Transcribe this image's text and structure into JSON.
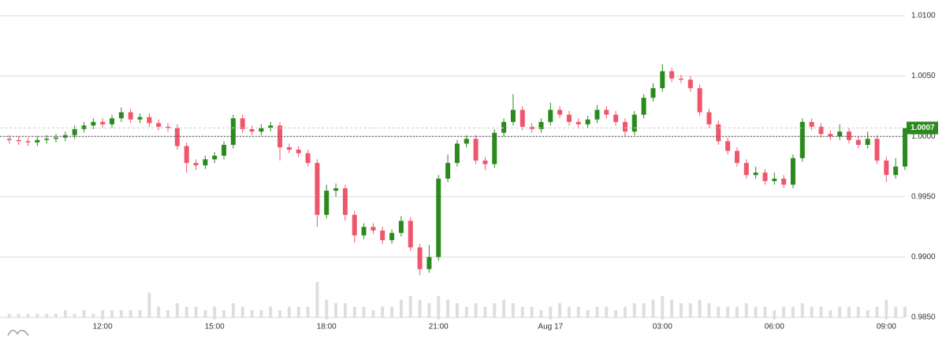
{
  "chart_data": {
    "type": "candlestick",
    "x": [
      9.5,
      9.75,
      10,
      10.25,
      10.5,
      10.75,
      11,
      11.25,
      11.5,
      11.75,
      12,
      12.25,
      12.5,
      12.75,
      13,
      13.25,
      13.5,
      13.75,
      14,
      14.25,
      14.5,
      14.75,
      15,
      15.25,
      15.5,
      15.75,
      16,
      16.25,
      16.5,
      16.75,
      17,
      17.25,
      17.5,
      17.75,
      18,
      18.25,
      18.5,
      18.75,
      19,
      19.25,
      19.5,
      19.75,
      20,
      20.25,
      20.5,
      20.75,
      21,
      21.25,
      21.5,
      21.75,
      22,
      22.25,
      22.5,
      22.75,
      23,
      23.25,
      23.5,
      23.75,
      24,
      24.25,
      24.5,
      24.75,
      25,
      25.25,
      25.5,
      25.75,
      26,
      26.25,
      26.5,
      26.75,
      27,
      27.25,
      27.5,
      27.75,
      28,
      28.25,
      28.5,
      28.75,
      29,
      29.25,
      29.5,
      29.75,
      30,
      30.25,
      30.5,
      30.75,
      31,
      31.25,
      31.5,
      31.75,
      32,
      32.25,
      32.5,
      32.75,
      33,
      33.25,
      33.5
    ],
    "ohlc": [
      [
        0.9998,
        1.0001,
        0.9994,
        0.9997
      ],
      [
        0.9997,
        1.0,
        0.9993,
        0.9996
      ],
      [
        0.9996,
        0.9999,
        0.9992,
        0.9995
      ],
      [
        0.9995,
        1.0,
        0.9992,
        0.9997
      ],
      [
        0.9997,
        1.0001,
        0.9994,
        0.9998
      ],
      [
        0.9998,
        1.0002,
        0.9995,
        0.9999
      ],
      [
        0.9999,
        1.0004,
        0.9996,
        1.0001
      ],
      [
        1.0001,
        1.0009,
        0.9998,
        1.0006
      ],
      [
        1.0006,
        1.0012,
        1.0003,
        1.0009
      ],
      [
        1.0009,
        1.0015,
        1.0006,
        1.0012
      ],
      [
        1.0012,
        1.0015,
        1.0007,
        1.001
      ],
      [
        1.001,
        1.0018,
        1.0007,
        1.0015
      ],
      [
        1.0015,
        1.0024,
        1.0012,
        1.002
      ],
      [
        1.002,
        1.0023,
        1.0011,
        1.0014
      ],
      [
        1.0014,
        1.0019,
        1.0011,
        1.0016
      ],
      [
        1.0016,
        1.0019,
        1.0008,
        1.0011
      ],
      [
        1.0011,
        1.0014,
        1.0005,
        1.0008
      ],
      [
        1.0008,
        1.0011,
        1.0004,
        1.0007
      ],
      [
        1.0007,
        1.001,
        0.9989,
        0.9992
      ],
      [
        0.9992,
        0.9995,
        0.997,
        0.9978
      ],
      [
        0.9978,
        0.9981,
        0.9972,
        0.9976
      ],
      [
        0.9976,
        0.9984,
        0.9973,
        0.9981
      ],
      [
        0.9981,
        0.9987,
        0.9978,
        0.9984
      ],
      [
        0.9984,
        0.9996,
        0.9981,
        0.9993
      ],
      [
        0.9993,
        1.0018,
        0.999,
        1.0015
      ],
      [
        1.0015,
        1.0018,
        1.0003,
        1.0006
      ],
      [
        1.0006,
        1.0009,
        1.0001,
        1.0004
      ],
      [
        1.0004,
        1.001,
        1.0001,
        1.0007
      ],
      [
        1.0007,
        1.0012,
        1.0004,
        1.0009
      ],
      [
        1.0009,
        1.0012,
        0.998,
        0.9991
      ],
      [
        0.9991,
        0.9994,
        0.9986,
        0.9989
      ],
      [
        0.9989,
        0.9992,
        0.9983,
        0.9986
      ],
      [
        0.9986,
        0.9989,
        0.9975,
        0.9978
      ],
      [
        0.9978,
        0.9981,
        0.9925,
        0.9935
      ],
      [
        0.9935,
        0.996,
        0.9932,
        0.9955
      ],
      [
        0.9955,
        0.9961,
        0.995,
        0.9957
      ],
      [
        0.9957,
        0.996,
        0.993,
        0.9935
      ],
      [
        0.9935,
        0.9938,
        0.9912,
        0.9918
      ],
      [
        0.9918,
        0.9928,
        0.9915,
        0.9925
      ],
      [
        0.9925,
        0.9928,
        0.9919,
        0.9922
      ],
      [
        0.9922,
        0.9925,
        0.9911,
        0.9914
      ],
      [
        0.9914,
        0.9923,
        0.9911,
        0.992
      ],
      [
        0.992,
        0.9934,
        0.9917,
        0.993
      ],
      [
        0.993,
        0.9933,
        0.9905,
        0.9908
      ],
      [
        0.9908,
        0.9911,
        0.9885,
        0.989
      ],
      [
        0.989,
        0.991,
        0.9887,
        0.99
      ],
      [
        0.99,
        0.9968,
        0.9897,
        0.9965
      ],
      [
        0.9965,
        0.9985,
        0.9962,
        0.9978
      ],
      [
        0.9978,
        0.9997,
        0.9975,
        0.9994
      ],
      [
        0.9994,
        1.0001,
        0.9991,
        0.9998
      ],
      [
        0.9998,
        1.0001,
        0.9977,
        0.998
      ],
      [
        0.998,
        0.9983,
        0.9972,
        0.9977
      ],
      [
        0.9977,
        1.0006,
        0.9974,
        1.0003
      ],
      [
        1.0003,
        1.0015,
        1.0,
        1.0012
      ],
      [
        1.0012,
        1.0035,
        1.0009,
        1.0022
      ],
      [
        1.0022,
        1.0025,
        1.0005,
        1.0008
      ],
      [
        1.0008,
        1.0011,
        1.0003,
        1.0006
      ],
      [
        1.0006,
        1.0015,
        1.0003,
        1.0012
      ],
      [
        1.0012,
        1.0028,
        1.0009,
        1.0022
      ],
      [
        1.0022,
        1.0025,
        1.0015,
        1.0018
      ],
      [
        1.0018,
        1.0021,
        1.0009,
        1.0012
      ],
      [
        1.0012,
        1.0015,
        1.0007,
        1.001
      ],
      [
        1.001,
        1.0017,
        1.0007,
        1.0014
      ],
      [
        1.0014,
        1.0026,
        1.0011,
        1.0022
      ],
      [
        1.0022,
        1.0025,
        1.0015,
        1.0018
      ],
      [
        1.0018,
        1.0021,
        1.0009,
        1.0012
      ],
      [
        1.0012,
        1.0015,
        1.0,
        1.0004
      ],
      [
        1.0004,
        1.0021,
        1.0001,
        1.0018
      ],
      [
        1.0018,
        1.0035,
        1.0015,
        1.0032
      ],
      [
        1.0032,
        1.0044,
        1.0029,
        1.004
      ],
      [
        1.004,
        1.006,
        1.0037,
        1.0054
      ],
      [
        1.0054,
        1.0057,
        1.0045,
        1.0048
      ],
      [
        1.0048,
        1.0051,
        1.0044,
        1.0047
      ],
      [
        1.0047,
        1.005,
        1.0037,
        1.004
      ],
      [
        1.004,
        1.0043,
        1.0017,
        1.002
      ],
      [
        1.002,
        1.0023,
        1.0007,
        1.001
      ],
      [
        1.001,
        1.0013,
        0.9993,
        0.9996
      ],
      [
        0.9996,
        0.9999,
        0.9985,
        0.9988
      ],
      [
        0.9988,
        0.9991,
        0.9975,
        0.9978
      ],
      [
        0.9978,
        0.9981,
        0.9965,
        0.9968
      ],
      [
        0.9968,
        0.9975,
        0.9965,
        0.997
      ],
      [
        0.997,
        0.9973,
        0.996,
        0.9963
      ],
      [
        0.9963,
        0.997,
        0.996,
        0.9965
      ],
      [
        0.9965,
        0.9968,
        0.9957,
        0.996
      ],
      [
        0.996,
        0.9985,
        0.9957,
        0.9982
      ],
      [
        0.9982,
        1.0015,
        0.9979,
        1.0012
      ],
      [
        1.0012,
        1.0015,
        1.0005,
        1.0008
      ],
      [
        1.0008,
        1.0011,
        0.9999,
        1.0002
      ],
      [
        1.0002,
        1.0005,
        0.9997,
        1.0
      ],
      [
        1.0,
        1.001,
        0.9997,
        1.0004
      ],
      [
        1.0004,
        1.0007,
        0.9994,
        0.9997
      ],
      [
        0.9997,
        1.0,
        0.999,
        0.9993
      ],
      [
        0.9993,
        1.0004,
        0.999,
        0.9998
      ],
      [
        0.9998,
        1.0001,
        0.9977,
        0.998
      ],
      [
        0.998,
        0.9983,
        0.9962,
        0.9968
      ],
      [
        0.9968,
        0.9982,
        0.9965,
        0.9975
      ],
      [
        0.9975,
        1.0007,
        0.9972,
        1.0007
      ]
    ],
    "volume": [
      1,
      1,
      1,
      1,
      1,
      1,
      2,
      1,
      2,
      1,
      2,
      2,
      2,
      2,
      2,
      7,
      3,
      2,
      4,
      3,
      3,
      2,
      3,
      2,
      4,
      3,
      2,
      2,
      3,
      2,
      3,
      3,
      3,
      10,
      5,
      4,
      4,
      3,
      3,
      2,
      3,
      3,
      5,
      6,
      5,
      4,
      6,
      5,
      4,
      3,
      4,
      3,
      4,
      5,
      4,
      3,
      3,
      2,
      3,
      4,
      3,
      3,
      2,
      3,
      3,
      2,
      3,
      4,
      4,
      5,
      6,
      5,
      4,
      4,
      5,
      4,
      3,
      3,
      3,
      4,
      3,
      3,
      2,
      3,
      3,
      4,
      3,
      3,
      2,
      3,
      3,
      3,
      2,
      3,
      5,
      3,
      3
    ],
    "up_color": "#2b8a1d",
    "down_color": "#f0566b",
    "volume_color": "#dedede",
    "xlim": [
      9.25,
      33.5
    ],
    "xticks": [
      {
        "value": 12,
        "label": "12:00"
      },
      {
        "value": 15,
        "label": "15:00"
      },
      {
        "value": 18,
        "label": "18:00"
      },
      {
        "value": 21,
        "label": "21:00"
      },
      {
        "value": 24,
        "label": "Aug 17"
      },
      {
        "value": 27,
        "label": "03:00"
      },
      {
        "value": 30,
        "label": "06:00"
      },
      {
        "value": 33,
        "label": "09:00"
      }
    ],
    "ylim": [
      0.985,
      1.01
    ],
    "yticks": [
      {
        "value": 0.985,
        "label": "0.9850"
      },
      {
        "value": 0.99,
        "label": "0.9900"
      },
      {
        "value": 0.995,
        "label": "0.9950"
      },
      {
        "value": 1,
        "label": "1.0000"
      },
      {
        "value": 1.005,
        "label": "1.0050"
      },
      {
        "value": 1.01,
        "label": "1.0100"
      }
    ],
    "grid": true,
    "reference_line": 1,
    "last_price": {
      "value": 1.0007,
      "label": "1.0007"
    }
  }
}
